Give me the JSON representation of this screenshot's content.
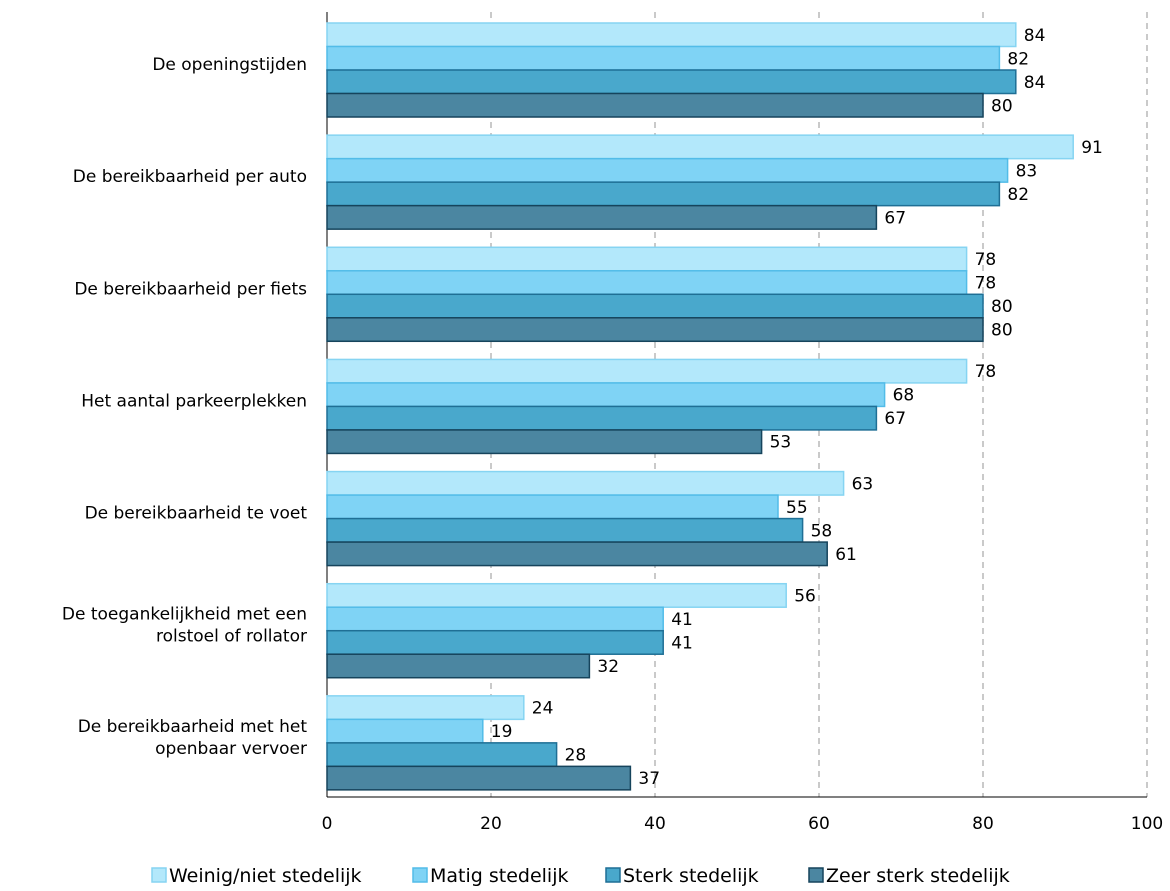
{
  "chart_data": {
    "type": "bar",
    "orientation": "horizontal",
    "title": "",
    "xlabel": "",
    "ylabel": "",
    "xlim": [
      0,
      100
    ],
    "ticks": [
      0,
      20,
      40,
      60,
      80,
      100
    ],
    "grid": true,
    "legend_position": "bottom",
    "categories": [
      "De openingstijden",
      "De bereikbaarheid per auto",
      "De bereikbaarheid per fiets",
      "Het aantal parkeerplekken",
      "De bereikbaarheid te voet",
      "De toegankelijkheid met een rolstoel of rollator",
      "De bereikbaarheid met het openbaar vervoer"
    ],
    "category_lines": [
      [
        "De openingstijden"
      ],
      [
        "De bereikbaarheid per auto"
      ],
      [
        "De bereikbaarheid per fiets"
      ],
      [
        "Het aantal parkeerplekken"
      ],
      [
        "De bereikbaarheid te voet"
      ],
      [
        "De toegankelijkheid met een",
        "rolstoel of rollator"
      ],
      [
        "De bereikbaarheid met het",
        "openbaar vervoer"
      ]
    ],
    "series": [
      {
        "name": "Weinig/niet stedelijk",
        "color": "#b3e8fb",
        "border": "#86d4f2",
        "values": [
          84,
          91,
          78,
          78,
          63,
          56,
          24
        ]
      },
      {
        "name": "Matig stedelijk",
        "color": "#7fd3f5",
        "border": "#52bce8",
        "values": [
          82,
          83,
          78,
          68,
          55,
          41,
          19
        ]
      },
      {
        "name": "Sterk stedelijk",
        "color": "#49a8cc",
        "border": "#1f6f95",
        "values": [
          84,
          82,
          80,
          67,
          58,
          41,
          28
        ]
      },
      {
        "name": "Zeer sterk stedelijk",
        "color": "#4b86a1",
        "border": "#16445c",
        "values": [
          80,
          67,
          80,
          53,
          61,
          32,
          37
        ]
      }
    ]
  }
}
